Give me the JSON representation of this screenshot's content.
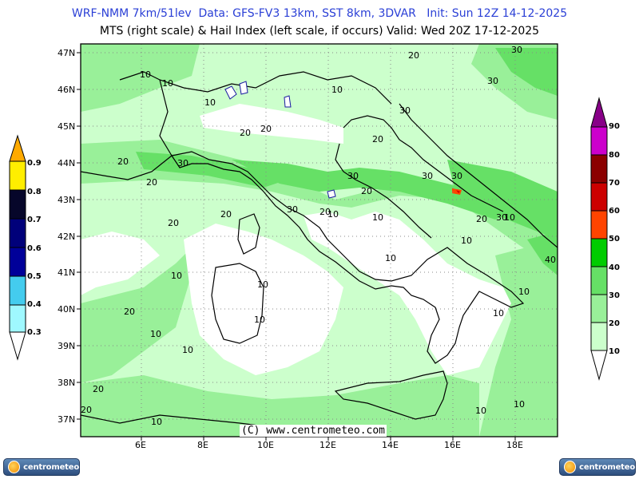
{
  "header": {
    "line1": "WRF-NMM 7km/51lev  Data: GFS-FV3 13km, SST 8km, 3DVAR   Init: Sun 12Z 14-12-2025",
    "line2": "MTS (right scale) & Hail Index (left scale, if occurs) Valid: Wed 20Z 17-12-2025"
  },
  "map": {
    "lat_labels": [
      "47N",
      "46N",
      "45N",
      "44N",
      "43N",
      "42N",
      "41N",
      "40N",
      "39N",
      "38N",
      "37N"
    ],
    "lon_labels": [
      "6E",
      "8E",
      "10E",
      "12E",
      "14E",
      "16E",
      "18E"
    ],
    "contour_labels": [
      "10",
      "20",
      "30",
      "40"
    ],
    "copyright": "(C) www.centrometeo.com"
  },
  "colors": {
    "mts_10_20": "#ccffcc",
    "mts_20_30": "#99f099",
    "mts_30_40": "#66e066",
    "mts_40_50": "#00cc00",
    "mts_50_60": "#ff4400",
    "mts_60_70": "#cc0000",
    "mts_70_80": "#8b0000",
    "mts_80_90": "#cc00cc",
    "mts_90": "#880088",
    "hail_0.3_0.4": "#9ff8ff",
    "hail_0.4_0.5": "#44ccee",
    "hail_0.5_0.6": "#000099",
    "hail_0.6_0.7": "#00007a",
    "hail_0.7_0.8": "#06062a",
    "hail_0.8_0.9": "#ffee00",
    "hail_0.9": "#ffaa00"
  },
  "left_scale": {
    "name": "Hail Index",
    "ticks": [
      "0.9",
      "0.8",
      "0.7",
      "0.6",
      "0.5",
      "0.4",
      "0.3"
    ]
  },
  "right_scale": {
    "name": "MTS",
    "ticks": [
      "90",
      "80",
      "70",
      "60",
      "50",
      "40",
      "30",
      "20",
      "10"
    ]
  },
  "logos": {
    "left_text": "centrometeo",
    "right_text": "centrometeo"
  }
}
